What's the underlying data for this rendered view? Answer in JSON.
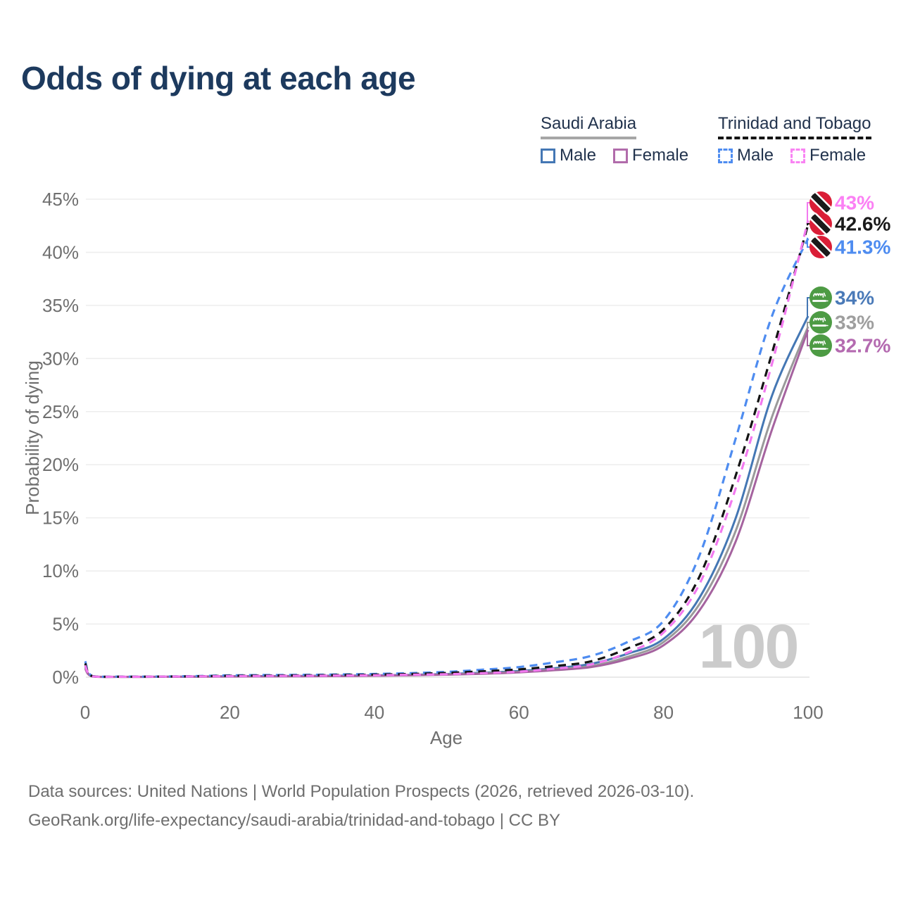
{
  "title": "Odds of dying at each age",
  "legend": {
    "saudi": {
      "title": "Saudi Arabia",
      "male_label": "Male",
      "female_label": "Female",
      "male_color": "#4477b4",
      "female_color": "#b16cab",
      "underline_color": "#a6a6a6",
      "line_style": "solid"
    },
    "trinidad": {
      "title": "Trinidad and Tobago",
      "male_label": "Male",
      "female_label": "Female",
      "male_color": "#4e8cf0",
      "female_color": "#f983f3",
      "underline_color": "#141414",
      "line_style": "dashed"
    }
  },
  "axes": {
    "x": {
      "label": "Age",
      "tick_labels": [
        "0",
        "20",
        "40",
        "60",
        "80",
        "100"
      ],
      "tick_values": [
        0,
        20,
        40,
        60,
        80,
        100
      ]
    },
    "y": {
      "label": "Probability of dying",
      "tick_labels": [
        "0%",
        "5%",
        "10%",
        "15%",
        "20%",
        "25%",
        "30%",
        "35%",
        "40%",
        "45%"
      ],
      "tick_values": [
        0,
        5,
        10,
        15,
        20,
        25,
        30,
        35,
        40,
        45
      ]
    }
  },
  "watermark": "100",
  "end_labels": [
    {
      "series": "trinidad-and-tobago-female",
      "label": "43%",
      "value": 43.0,
      "color": "#fb80f4",
      "flag": "trinidad-and-tobago"
    },
    {
      "series": "trinidad-and-tobago-both",
      "label": "42.6%",
      "value": 42.6,
      "color": "#1a1a1a",
      "flag": "trinidad-and-tobago"
    },
    {
      "series": "trinidad-and-tobago-male",
      "label": "41.3%",
      "value": 41.3,
      "color": "#4e8cf0",
      "flag": "trinidad-and-tobago"
    },
    {
      "series": "saudi-arabia-male",
      "label": "34%",
      "value": 34.0,
      "color": "#4a7ab8",
      "flag": "saudi-arabia"
    },
    {
      "series": "saudi-arabia-both",
      "label": "33%",
      "value": 33.0,
      "color": "#9e9e9e",
      "flag": "saudi-arabia"
    },
    {
      "series": "saudi-arabia-female",
      "label": "32.7%",
      "value": 32.7,
      "color": "#b46ab0",
      "flag": "saudi-arabia"
    }
  ],
  "footer": {
    "line1": "Data sources: United Nations | World Population Prospects (2026, retrieved 2026-03-10).",
    "line2": "GeoRank.org/life-expectancy/saudi-arabia/trinidad-and-tobago | CC BY"
  },
  "chart_data": {
    "type": "line",
    "title": "Odds of dying at each age",
    "xlabel": "Age",
    "ylabel": "Probability of dying",
    "xlim": [
      0,
      100
    ],
    "ylim": [
      0,
      45
    ],
    "y_unit": "%",
    "grid": true,
    "legend_position": "top-right",
    "x": [
      0,
      1,
      5,
      10,
      15,
      20,
      25,
      30,
      35,
      40,
      45,
      50,
      55,
      60,
      65,
      70,
      75,
      80,
      85,
      90,
      95,
      100
    ],
    "series": [
      {
        "id": "saudi-arabia-male",
        "name": "Saudi Arabia — Male",
        "country": "Saudi Arabia",
        "sex": "male",
        "color": "#4477b4",
        "dash": false,
        "values": [
          1.0,
          0.08,
          0.03,
          0.04,
          0.06,
          0.09,
          0.1,
          0.12,
          0.14,
          0.17,
          0.22,
          0.3,
          0.42,
          0.58,
          0.85,
          1.25,
          2.2,
          3.6,
          7.5,
          15.0,
          26.5,
          34.0
        ],
        "end_label": "34%"
      },
      {
        "id": "saudi-arabia-both",
        "name": "Saudi Arabia — Both sexes",
        "country": "Saudi Arabia",
        "sex": "both",
        "color": "#9a9a9a",
        "dash": false,
        "values": [
          0.9,
          0.07,
          0.03,
          0.03,
          0.05,
          0.07,
          0.08,
          0.09,
          0.11,
          0.14,
          0.19,
          0.26,
          0.36,
          0.5,
          0.75,
          1.05,
          1.9,
          3.3,
          6.9,
          13.8,
          24.5,
          33.0
        ],
        "end_label": "33%"
      },
      {
        "id": "saudi-arabia-female",
        "name": "Saudi Arabia — Female",
        "country": "Saudi Arabia",
        "sex": "female",
        "color": "#a5639f",
        "dash": false,
        "values": [
          0.8,
          0.06,
          0.02,
          0.03,
          0.04,
          0.06,
          0.07,
          0.08,
          0.1,
          0.13,
          0.17,
          0.23,
          0.32,
          0.45,
          0.66,
          0.95,
          1.7,
          3.0,
          6.3,
          12.8,
          23.3,
          32.7
        ],
        "end_label": "32.7%"
      },
      {
        "id": "trinidad-and-tobago-male",
        "name": "Trinidad and Tobago — Male",
        "country": "Trinidad and Tobago",
        "sex": "male",
        "color": "#4e8cf0",
        "dash": true,
        "values": [
          1.5,
          0.1,
          0.05,
          0.06,
          0.1,
          0.17,
          0.2,
          0.22,
          0.25,
          0.3,
          0.38,
          0.5,
          0.7,
          0.95,
          1.4,
          2.0,
          3.3,
          5.3,
          11.5,
          22.5,
          34.0,
          41.3
        ],
        "end_label": "41.3%"
      },
      {
        "id": "trinidad-and-tobago-both",
        "name": "Trinidad and Tobago — Both sexes",
        "country": "Trinidad and Tobago",
        "sex": "both",
        "color": "#141414",
        "dash": true,
        "values": [
          1.3,
          0.09,
          0.04,
          0.05,
          0.08,
          0.13,
          0.15,
          0.17,
          0.2,
          0.24,
          0.3,
          0.4,
          0.55,
          0.73,
          1.05,
          1.5,
          2.7,
          4.5,
          9.5,
          19.0,
          30.5,
          42.6
        ],
        "end_label": "42.6%"
      },
      {
        "id": "trinidad-and-tobago-female",
        "name": "Trinidad and Tobago — Female",
        "country": "Trinidad and Tobago",
        "sex": "female",
        "color": "#f279ef",
        "dash": true,
        "values": [
          1.1,
          0.08,
          0.04,
          0.05,
          0.07,
          0.1,
          0.12,
          0.13,
          0.15,
          0.18,
          0.23,
          0.28,
          0.38,
          0.52,
          0.8,
          1.2,
          2.3,
          4.2,
          8.8,
          17.8,
          29.5,
          43.0
        ],
        "end_label": "43%"
      }
    ]
  }
}
